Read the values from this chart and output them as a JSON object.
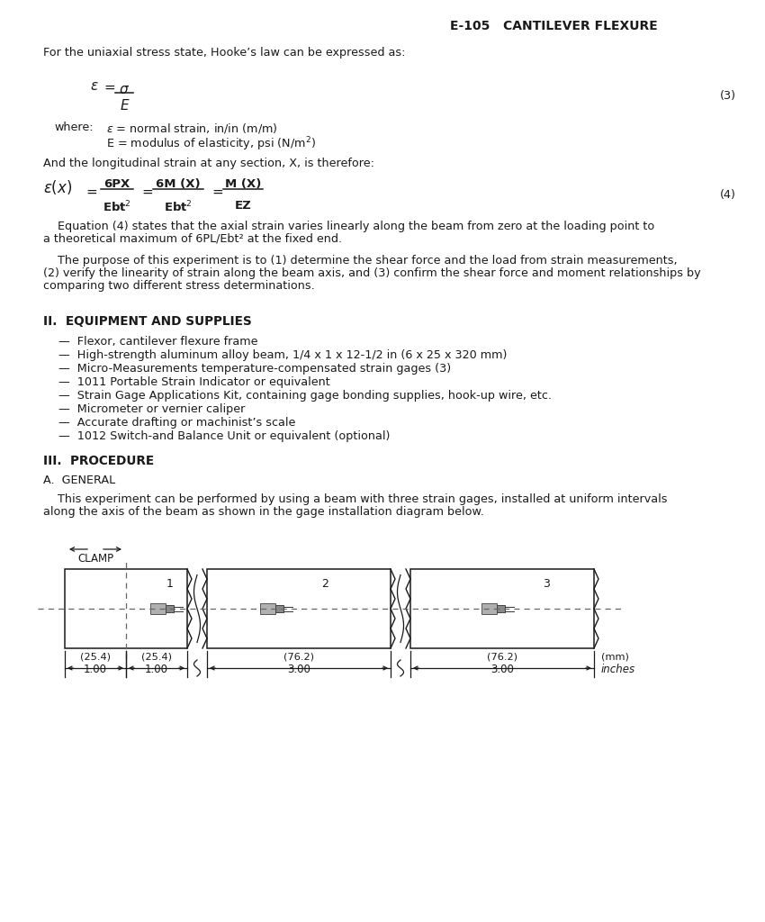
{
  "header": "E-105   CANTILEVER FLEXURE",
  "bg_color": "#ffffff",
  "text_color": "#1a1a1a",
  "para1": "For the uniaxial stress state, Hooke’s law can be expressed as:",
  "eq3_label": "(3)",
  "eq4_label": "(4)",
  "where_label": "where:",
  "where_line1": "ε = normal strain, in/in (m/m)",
  "where_line2": "E = modulus of elasticity, psi (N/m²)",
  "para2": "And the longitudinal strain at any section, X, is therefore:",
  "eq4_note1": "    Equation (4) states that the axial strain varies linearly along the beam from zero at the loading point to",
  "eq4_note2": "a theoretical maximum of 6PL/Ebt² at the fixed end.",
  "para3_1": "    The purpose of this experiment is to (1) determine the shear force and the load from strain measurements,",
  "para3_2": "(2) verify the linearity of strain along the beam axis, and (3) confirm the shear force and moment relationships by",
  "para3_3": "comparing two different stress determinations.",
  "section2_title": "II.  EQUIPMENT AND SUPPLIES",
  "equipment_items": [
    "—  Flexor, cantilever flexure frame",
    "—  High-strength aluminum alloy beam, 1/4 x 1 x 12-1/2 in (6 x 25 x 320 mm)",
    "—  Micro-Measurements temperature-compensated strain gages (3)",
    "—  1011 Portable Strain Indicator or equivalent",
    "—  Strain Gage Applications Kit, containing gage bonding supplies, hook-up wire, etc.",
    "—  Micrometer or vernier caliper",
    "—  Accurate drafting or machinist’s scale",
    "—  1012 Switch-and Balance Unit or equivalent (optional)"
  ],
  "section3_title": "III.  PROCEDURE",
  "subsection_a": "A.  GENERAL",
  "para4_1": "    This experiment can be performed by using a beam with three strain gages, installed at uniform intervals",
  "para4_2": "along the axis of the beam as shown in the gage installation diagram below.",
  "clamp_label": "CLAMP",
  "dim1": "1.00",
  "dim2": "1.00",
  "dim3": "3.00",
  "dim4": "3.00",
  "dim1_mm": "(25.4)",
  "dim2_mm": "(25.4)",
  "dim3_mm": "(76.2)",
  "dim4_mm": "(76.2)",
  "inches_label": "inches",
  "mm_label": "(mm)"
}
